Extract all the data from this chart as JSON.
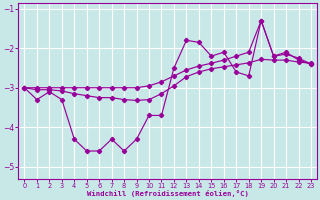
{
  "background_color": "#c8e8e8",
  "line_color": "#990099",
  "grid_color": "#ffffff",
  "xlabel": "Windchill (Refroidissement éolien,°C)",
  "x": [
    0,
    1,
    2,
    3,
    4,
    5,
    6,
    7,
    8,
    9,
    10,
    11,
    12,
    13,
    14,
    15,
    16,
    17,
    18,
    19,
    20,
    21,
    22,
    23
  ],
  "y_jagged": [
    -3.0,
    -3.3,
    -3.1,
    -3.3,
    -4.3,
    -4.6,
    -4.6,
    -4.3,
    -4.6,
    -4.3,
    -3.7,
    -3.7,
    -2.5,
    -1.8,
    -1.85,
    -2.2,
    -2.1,
    -2.6,
    -2.7,
    -1.3,
    -2.2,
    -2.1,
    -2.3,
    -2.4
  ],
  "y_upper": [
    -3.0,
    -3.0,
    -3.0,
    -3.0,
    -3.0,
    -3.0,
    -3.0,
    -3.0,
    -3.0,
    -3.0,
    -2.95,
    -2.85,
    -2.7,
    -2.55,
    -2.45,
    -2.38,
    -2.3,
    -2.2,
    -2.1,
    -1.3,
    -2.2,
    -2.15,
    -2.25,
    -2.4
  ],
  "y_middle": [
    -3.0,
    -3.05,
    -3.05,
    -3.08,
    -3.15,
    -3.2,
    -3.25,
    -3.25,
    -3.3,
    -3.32,
    -3.3,
    -3.15,
    -2.95,
    -2.72,
    -2.6,
    -2.52,
    -2.47,
    -2.42,
    -2.37,
    -2.28,
    -2.3,
    -2.3,
    -2.35,
    -2.38
  ],
  "xlim": [
    -0.5,
    23.5
  ],
  "ylim": [
    -5.3,
    -0.85
  ],
  "yticks": [
    -5,
    -4,
    -3,
    -2,
    -1
  ],
  "xticks": [
    0,
    1,
    2,
    3,
    4,
    5,
    6,
    7,
    8,
    9,
    10,
    11,
    12,
    13,
    14,
    15,
    16,
    17,
    18,
    19,
    20,
    21,
    22,
    23
  ]
}
